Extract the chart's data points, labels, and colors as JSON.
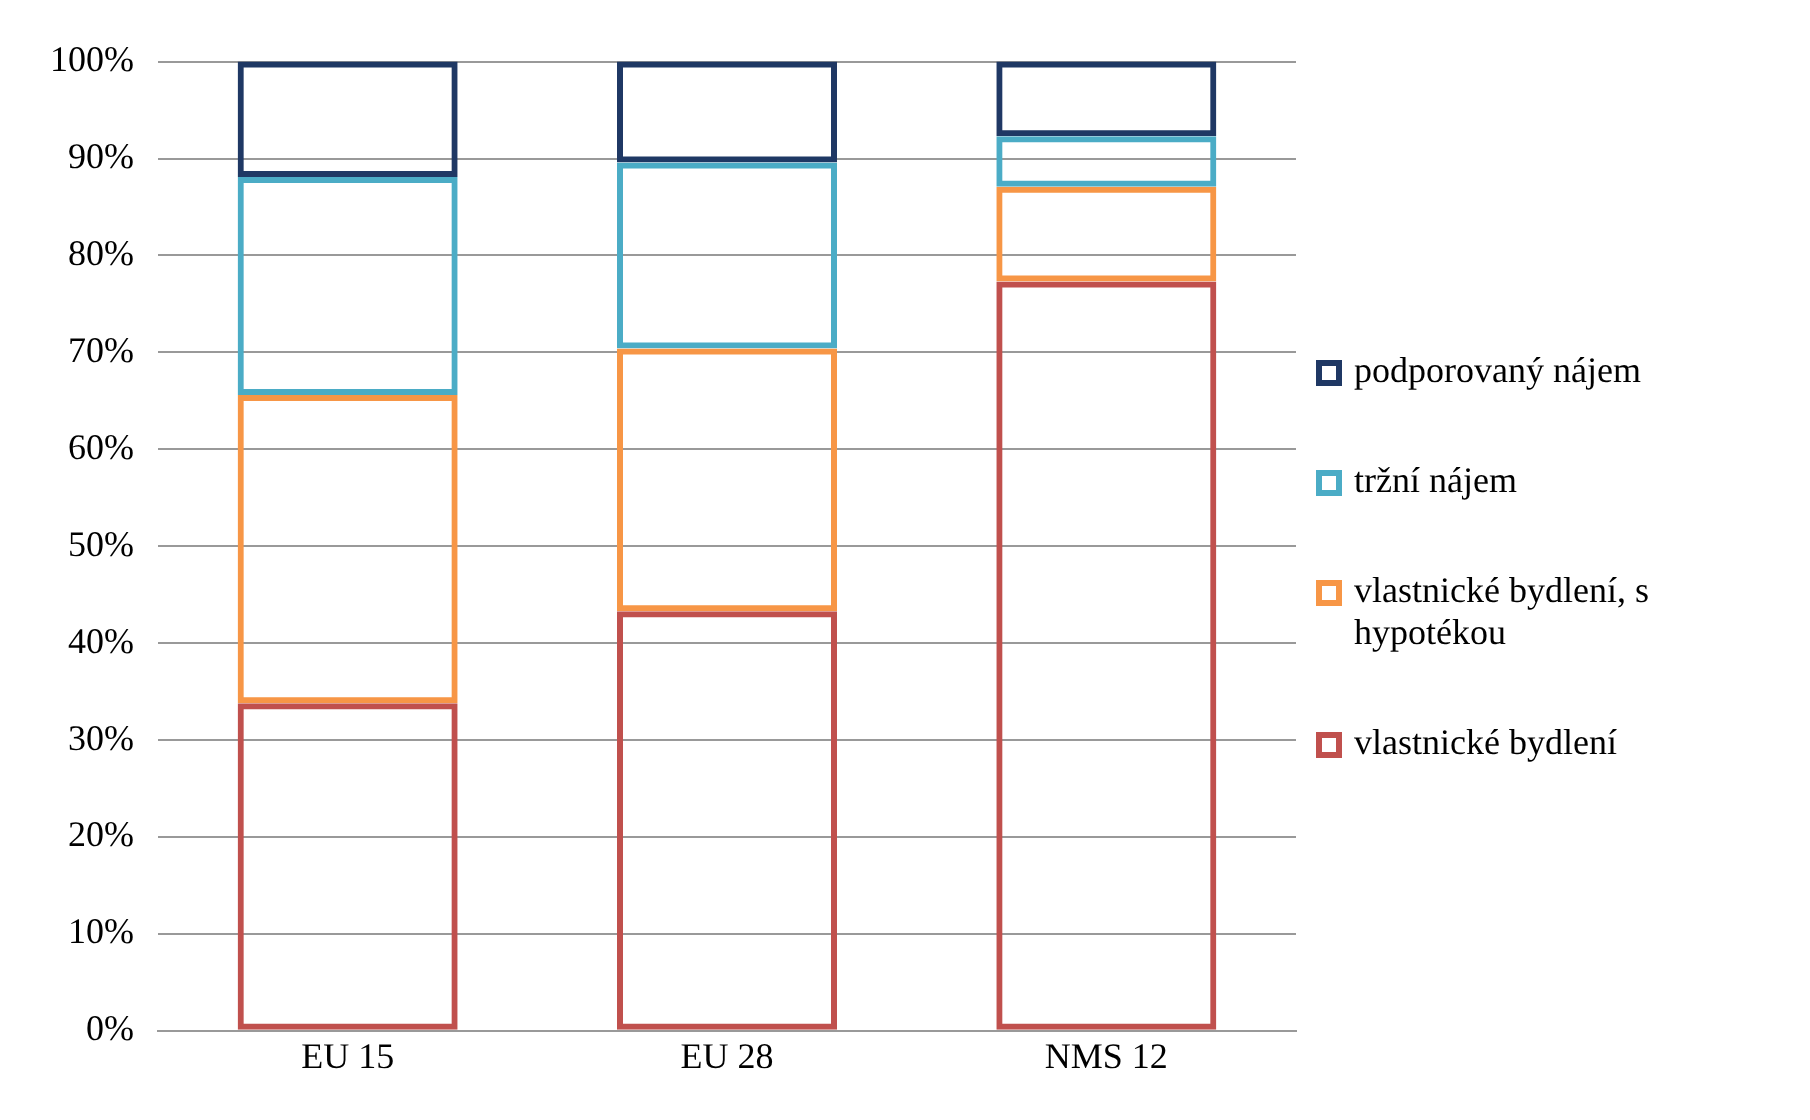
{
  "chart_data": {
    "type": "bar",
    "stacked": true,
    "categories": [
      "EU 15",
      "EU 28",
      "NMS 12"
    ],
    "series": [
      {
        "name": "vlastnické bydlení",
        "color": "#c0504d",
        "values": [
          33.8,
          43.3,
          77.3
        ]
      },
      {
        "name": "vlastnické bydlení, s hypotékou",
        "color": "#f79646",
        "values": [
          31.8,
          27.1,
          9.8
        ]
      },
      {
        "name": "tržní nájem",
        "color": "#4bacc6",
        "values": [
          22.5,
          19.2,
          5.2
        ]
      },
      {
        "name": "podporovaný nájem",
        "color": "#1f3864",
        "values": [
          11.9,
          10.4,
          7.7
        ]
      }
    ],
    "ylim": [
      0,
      100
    ],
    "yticks": [
      {
        "value": 0,
        "label": "0%"
      },
      {
        "value": 10,
        "label": "10%"
      },
      {
        "value": 20,
        "label": "20%"
      },
      {
        "value": 30,
        "label": "30%"
      },
      {
        "value": 40,
        "label": "40%"
      },
      {
        "value": 50,
        "label": "50%"
      },
      {
        "value": 60,
        "label": "60%"
      },
      {
        "value": 70,
        "label": "70%"
      },
      {
        "value": 80,
        "label": "80%"
      },
      {
        "value": 90,
        "label": "90%"
      },
      {
        "value": 100,
        "label": "100%"
      }
    ],
    "grid": "y",
    "legend": "right"
  }
}
